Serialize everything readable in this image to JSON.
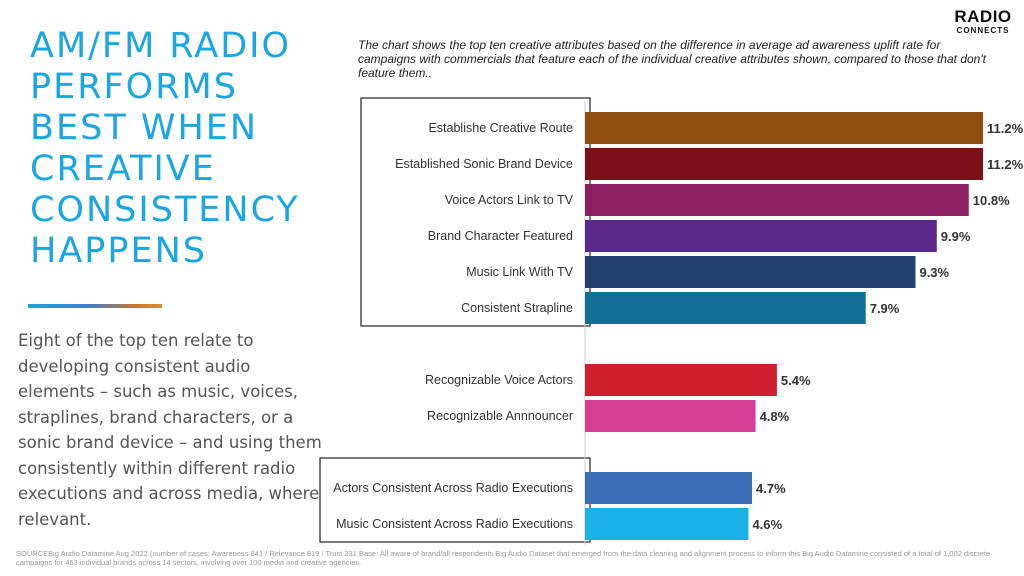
{
  "headline": "AM/FM RADIO\nPERFORMS\nBEST WHEN\nCREATIVE\nCONSISTENCY\nHAPPENS",
  "body_text": "Eight of the top ten relate to developing consistent audio elements – such as music, voices, straplines, brand characters, or a sonic brand device – and using them consistently within different radio executions and across media, where relevant.",
  "chart_note": "The chart shows the top ten creative attributes based on the difference in average ad awareness uplift rate for campaigns with commercials that feature each of the individual creative attributes shown, compared to those that don't feature them..",
  "logo": {
    "main": "RADIO",
    "sub": "CONNECTS"
  },
  "source": "SOURCEBig Audio Datamine Aug 2022  (number of cases: Awareness 841 / Relevance 819 / Trust 231 Base: All aware of brand/all respondents Big Audio Dataset that emerged from the data cleaning and alignment process to inform this Big Audio Datamine consisted of a total of 1,002 discrete campaigns for 463 individual brands across 14 sectors, involving over 100 media and creative agencies.",
  "chart_data": {
    "type": "bar",
    "orientation": "horizontal",
    "categories": [
      "Establishe Creative Route",
      "Established Sonic Brand Device",
      "Voice Actors Link to TV",
      "Brand Character Featured",
      "Music Link With TV",
      "Consistent Strapline",
      "Recognizable Voice Actors",
      "Recognizable Annnouncer",
      "Actors Consistent Across Radio Executions",
      "Music Consistent Across Radio Executions"
    ],
    "values": [
      11.2,
      11.2,
      10.8,
      9.9,
      9.3,
      7.9,
      5.4,
      4.8,
      4.7,
      4.6
    ],
    "value_labels": [
      "11.2%",
      "11.2%",
      "10.8%",
      "9.9%",
      "9.3%",
      "7.9%",
      "5.4%",
      "4.8%",
      "4.7%",
      "4.6%"
    ],
    "colors": [
      "#8f4d0f",
      "#7a1119",
      "#8a1f62",
      "#5b2a8c",
      "#233f70",
      "#116e96",
      "#d01f2f",
      "#d63e93",
      "#3a6fb8",
      "#1ab1e8"
    ],
    "groups": [
      {
        "items": [
          0,
          1,
          2,
          3,
          4,
          5
        ],
        "boxed": true
      },
      {
        "items": [
          6,
          7
        ],
        "boxed": false
      },
      {
        "items": [
          8,
          9
        ],
        "boxed": true
      }
    ],
    "xlim": [
      0,
      11.2
    ],
    "grid": false
  }
}
